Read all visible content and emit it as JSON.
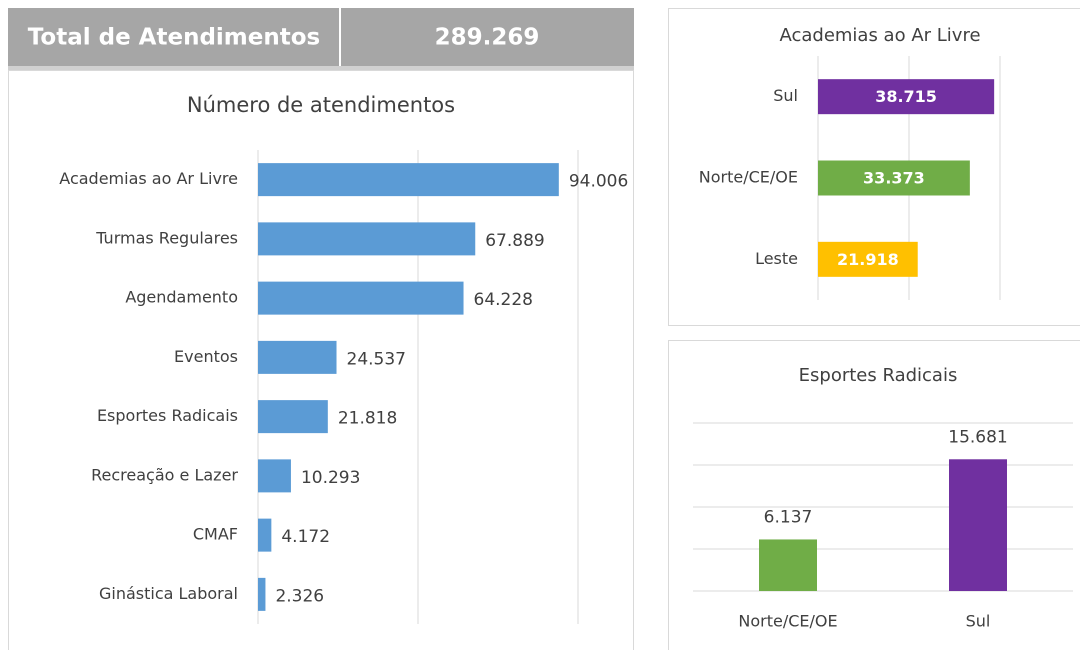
{
  "header": {
    "title": "Total de Atendimentos",
    "total": "289.269"
  },
  "chart_data": [
    {
      "type": "hbar",
      "title": "Número de atendimentos",
      "categories": [
        "Academias ao Ar Livre",
        "Turmas Regulares",
        "Agendamento",
        "Eventos",
        "Esportes Radicais",
        "Recreação e Lazer",
        "CMAF",
        "Ginástica Laboral"
      ],
      "values": [
        94006,
        67889,
        64228,
        24537,
        21818,
        10293,
        4172,
        2326
      ],
      "value_labels": [
        "94.006",
        "67.889",
        "64.228",
        "24.537",
        "21.818",
        "10.293",
        "4.172",
        "2.326"
      ],
      "color": "#5b9bd5",
      "xlim": [
        0,
        100000
      ],
      "xticks": [
        0,
        50000,
        100000
      ],
      "grid": true
    },
    {
      "type": "hbar",
      "title": "Academias ao Ar Livre",
      "categories": [
        "Sul",
        "Norte/CE/OE",
        "Leste"
      ],
      "values": [
        38715,
        33373,
        21918
      ],
      "value_labels": [
        "38.715",
        "33.373",
        "21.918"
      ],
      "colors": [
        "#7030a0",
        "#70ad47",
        "#ffc000"
      ],
      "xlim": [
        0,
        40000
      ],
      "xticks": [
        0,
        20000,
        40000
      ],
      "grid": true
    },
    {
      "type": "bar",
      "title": "Esportes Radicais",
      "categories": [
        "Norte/CE/OE",
        "Sul"
      ],
      "values": [
        6137,
        15681
      ],
      "value_labels": [
        "6.137",
        "15.681"
      ],
      "colors": [
        "#70ad47",
        "#7030a0"
      ],
      "ylim": [
        0,
        20000
      ],
      "yticks": [
        0,
        5000,
        10000,
        15000,
        20000
      ],
      "grid": true
    }
  ]
}
